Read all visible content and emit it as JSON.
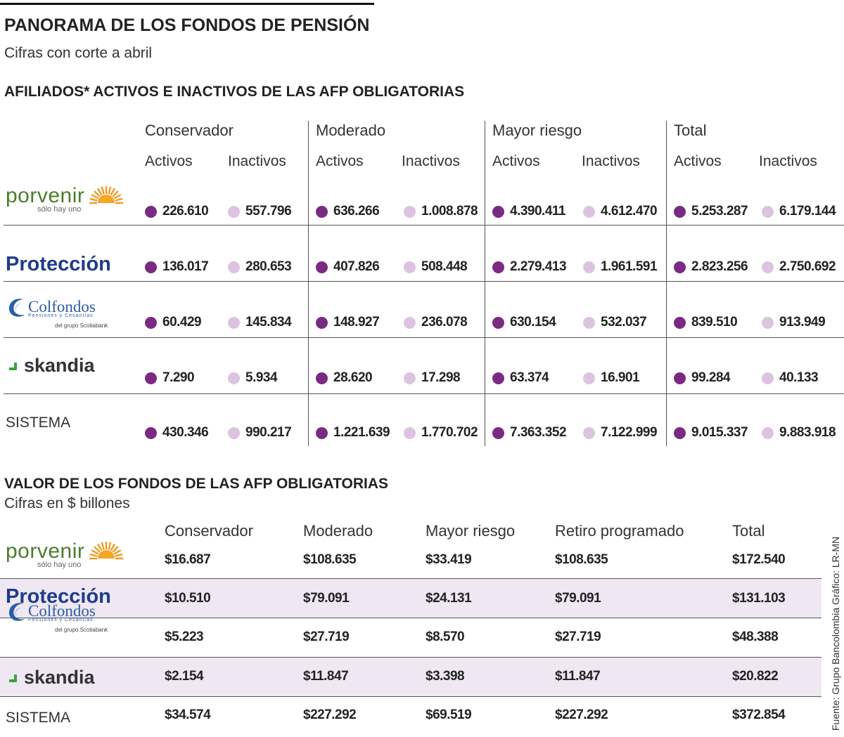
{
  "header": {
    "title": "PANORAMA DE LOS FONDOS DE PENSIÓN",
    "subtitle": "Cifras con corte a abril"
  },
  "entities": [
    {
      "name": "porvenir",
      "tagline": "sólo hay uno"
    },
    {
      "name": "Protección"
    },
    {
      "name": "Colfondos",
      "tagline": "Pensiones y Cesantías",
      "group": "del grupo Scotiabank"
    },
    {
      "name": "skandia"
    },
    {
      "name": "SISTEMA"
    }
  ],
  "afiliados": {
    "title": "AFILIADOS* ACTIVOS E INACTIVOS DE LAS AFP OBLIGATORIAS",
    "groups": [
      "Conservador",
      "Moderado",
      "Mayor riesgo",
      "Total"
    ],
    "subheaders": [
      "Activos",
      "Inactivos"
    ],
    "rows": [
      [
        "226.610",
        "557.796",
        "636.266",
        "1.008.878",
        "4.390.411",
        "4.612.470",
        "5.253.287",
        "6.179.144"
      ],
      [
        "136.017",
        "280.653",
        "407.826",
        "508.448",
        "2.279.413",
        "1.961.591",
        "2.823.256",
        "2.750.692"
      ],
      [
        "60.429",
        "145.834",
        "148.927",
        "236.078",
        "630.154",
        "532.037",
        "839.510",
        "913.949"
      ],
      [
        "7.290",
        "5.934",
        "28.620",
        "17.298",
        "63.374",
        "16.901",
        "99.284",
        "40.133"
      ],
      [
        "430.346",
        "990.217",
        "1.221.639",
        "1.770.702",
        "7.363.352",
        "7.122.999",
        "9.015.337",
        "9.883.918"
      ]
    ]
  },
  "valor": {
    "title": "VALOR DE LOS FONDOS DE LAS AFP OBLIGATORIAS",
    "subtitle": "Cifras en $ billones",
    "columns": [
      "Conservador",
      "Moderado",
      "Mayor riesgo",
      "Retiro programado",
      "Total"
    ],
    "rows": [
      [
        "$16.687",
        "$108.635",
        "$33.419",
        "$108.635",
        "$172.540"
      ],
      [
        "$10.510",
        "$79.091",
        "$24.131",
        "$79.091",
        "$131.103"
      ],
      [
        "$5.223",
        "$27.719",
        "$8.570",
        "$27.719",
        "$48.388"
      ],
      [
        "$2.154",
        "$11.847",
        "$3.398",
        "$11.847",
        "$20.822"
      ],
      [
        "$34.574",
        "$227.292",
        "$69.519",
        "$227.292",
        "$372.854"
      ]
    ]
  },
  "source": "Fuente: Grupo Bancolombia   Gráfico: LR-MN"
}
